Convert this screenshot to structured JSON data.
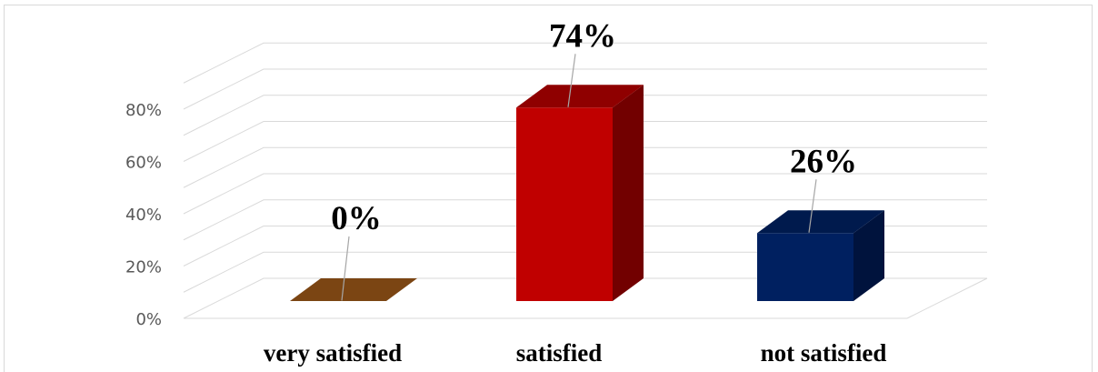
{
  "chart_data": {
    "type": "bar",
    "categories": [
      "very satisfied",
      "satisfied",
      "not satisfied"
    ],
    "values": [
      0,
      74,
      26
    ],
    "data_labels": [
      "0%",
      "74%",
      "26%"
    ],
    "yticks": [
      "0%",
      "20%",
      "40%",
      "60%",
      "80%"
    ],
    "ylim": [
      0,
      90
    ],
    "grid": true,
    "legend": "none",
    "colors": [
      {
        "front": "#7b4513",
        "side": "#4a2a0b",
        "top": "#8c5418"
      },
      {
        "front": "#c00000",
        "side": "#720000",
        "top": "#8f0000"
      },
      {
        "front": "#002060",
        "side": "#00133d",
        "top": "#001a4d"
      }
    ]
  }
}
